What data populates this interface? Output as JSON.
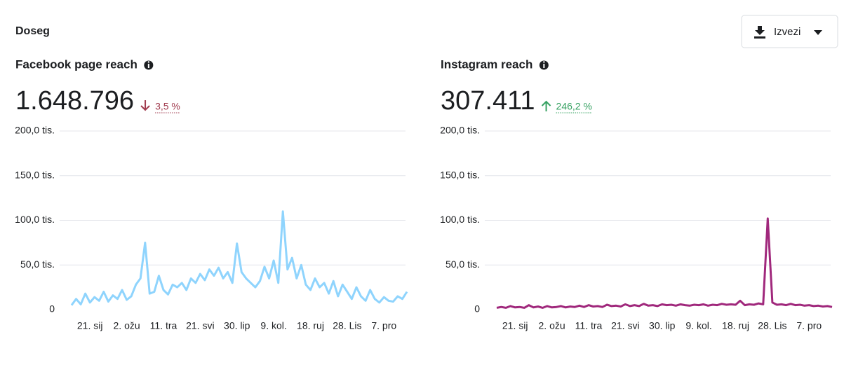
{
  "header": {
    "title": "Doseg",
    "button": "Izvezi"
  },
  "chart_data": [
    {
      "type": "line",
      "title": "Facebook page reach",
      "total": "1.648.796",
      "change": "3,5 %",
      "trend": "down",
      "color": "#8fd4fd",
      "x": [
        0,
        5,
        10,
        15,
        20,
        25,
        30,
        35,
        40,
        45,
        50,
        55,
        60,
        65,
        70,
        75,
        80,
        85,
        90,
        95,
        100,
        105,
        110,
        115,
        120,
        125,
        130,
        135,
        140,
        145,
        150,
        155,
        160,
        165,
        170,
        175,
        180,
        185,
        190,
        195,
        200,
        205,
        210,
        215,
        220,
        225,
        230,
        235,
        240,
        245,
        250,
        255,
        260,
        265,
        270,
        275,
        280,
        285,
        290,
        295,
        300,
        305,
        310,
        315,
        320,
        325,
        330,
        335,
        340,
        345,
        350,
        355,
        360,
        365
      ],
      "values": [
        5000,
        12000,
        6000,
        18000,
        8000,
        14000,
        10000,
        20000,
        9000,
        16000,
        12000,
        22000,
        11000,
        15000,
        28000,
        35000,
        75000,
        18000,
        20000,
        38000,
        22000,
        17000,
        28000,
        25000,
        30000,
        22000,
        35000,
        30000,
        40000,
        33000,
        45000,
        38000,
        47000,
        35000,
        42000,
        30000,
        74000,
        42000,
        35000,
        30000,
        25000,
        32000,
        48000,
        35000,
        55000,
        30000,
        110000,
        45000,
        58000,
        35000,
        50000,
        28000,
        22000,
        35000,
        25000,
        30000,
        18000,
        32000,
        15000,
        28000,
        20000,
        12000,
        25000,
        15000,
        10000,
        22000,
        12000,
        8000,
        14000,
        10000,
        9000,
        15000,
        12000,
        20000
      ],
      "xlim": [
        0,
        365
      ],
      "xticks": [
        {
          "value": 20,
          "label": "21. sij"
        },
        {
          "value": 60,
          "label": "2. ožu"
        },
        {
          "value": 100,
          "label": "11. tra"
        },
        {
          "value": 140,
          "label": "21. svi"
        },
        {
          "value": 180,
          "label": "30. lip"
        },
        {
          "value": 220,
          "label": "9. kol."
        },
        {
          "value": 260,
          "label": "18. ruj"
        },
        {
          "value": 300,
          "label": "28. Lis"
        },
        {
          "value": 340,
          "label": "7. pro"
        }
      ],
      "ylim": [
        0,
        200000
      ],
      "yticks": [
        0,
        {
          "value": 50000,
          "label": "50,0 tis."
        },
        {
          "value": 100000,
          "label": "100,0 tis."
        },
        {
          "value": 150000,
          "label": "150,0 tis."
        },
        {
          "value": 200000,
          "label": "200,0 tis."
        }
      ],
      "grid": true
    },
    {
      "type": "line",
      "title": "Instagram reach",
      "total": "307.411",
      "change": "246,2 %",
      "trend": "up",
      "color": "#a0287c",
      "x": [
        0,
        5,
        10,
        15,
        20,
        25,
        30,
        35,
        40,
        45,
        50,
        55,
        60,
        65,
        70,
        75,
        80,
        85,
        90,
        95,
        100,
        105,
        110,
        115,
        120,
        125,
        130,
        135,
        140,
        145,
        150,
        155,
        160,
        165,
        170,
        175,
        180,
        185,
        190,
        195,
        200,
        205,
        210,
        215,
        220,
        225,
        230,
        235,
        240,
        245,
        250,
        255,
        260,
        265,
        270,
        275,
        280,
        285,
        290,
        295,
        300,
        305,
        310,
        315,
        320,
        325,
        330,
        335,
        340,
        345,
        350,
        355,
        360,
        365
      ],
      "values": [
        2000,
        3000,
        2000,
        4000,
        2500,
        3000,
        2000,
        5000,
        2500,
        3500,
        2000,
        4000,
        2500,
        3000,
        4000,
        2500,
        3500,
        3000,
        4500,
        3000,
        5000,
        3500,
        4000,
        3000,
        5500,
        4000,
        4500,
        3500,
        6000,
        4000,
        5000,
        4000,
        6500,
        4500,
        5000,
        4000,
        6000,
        5000,
        5500,
        4500,
        6000,
        5000,
        4500,
        5500,
        5000,
        6000,
        4500,
        5500,
        5000,
        6500,
        5500,
        6000,
        5500,
        10000,
        5000,
        6000,
        5500,
        7000,
        6000,
        102000,
        8000,
        5500,
        6000,
        5000,
        6500,
        5000,
        5500,
        4500,
        5000,
        4000,
        4500,
        3500,
        4000,
        3000
      ],
      "xlim": [
        0,
        365
      ],
      "xticks": [
        {
          "value": 20,
          "label": "21. sij"
        },
        {
          "value": 60,
          "label": "2. ožu"
        },
        {
          "value": 100,
          "label": "11. tra"
        },
        {
          "value": 140,
          "label": "21. svi"
        },
        {
          "value": 180,
          "label": "30. lip"
        },
        {
          "value": 220,
          "label": "9. kol."
        },
        {
          "value": 260,
          "label": "18. ruj"
        },
        {
          "value": 300,
          "label": "28. Lis"
        },
        {
          "value": 340,
          "label": "7. pro"
        }
      ],
      "ylim": [
        0,
        200000
      ],
      "yticks": [
        0,
        {
          "value": 50000,
          "label": "50,0 tis."
        },
        {
          "value": 100000,
          "label": "100,0 tis."
        },
        {
          "value": 150000,
          "label": "150,0 tis."
        },
        {
          "value": 200000,
          "label": "200,0 tis."
        }
      ],
      "grid": true
    }
  ]
}
